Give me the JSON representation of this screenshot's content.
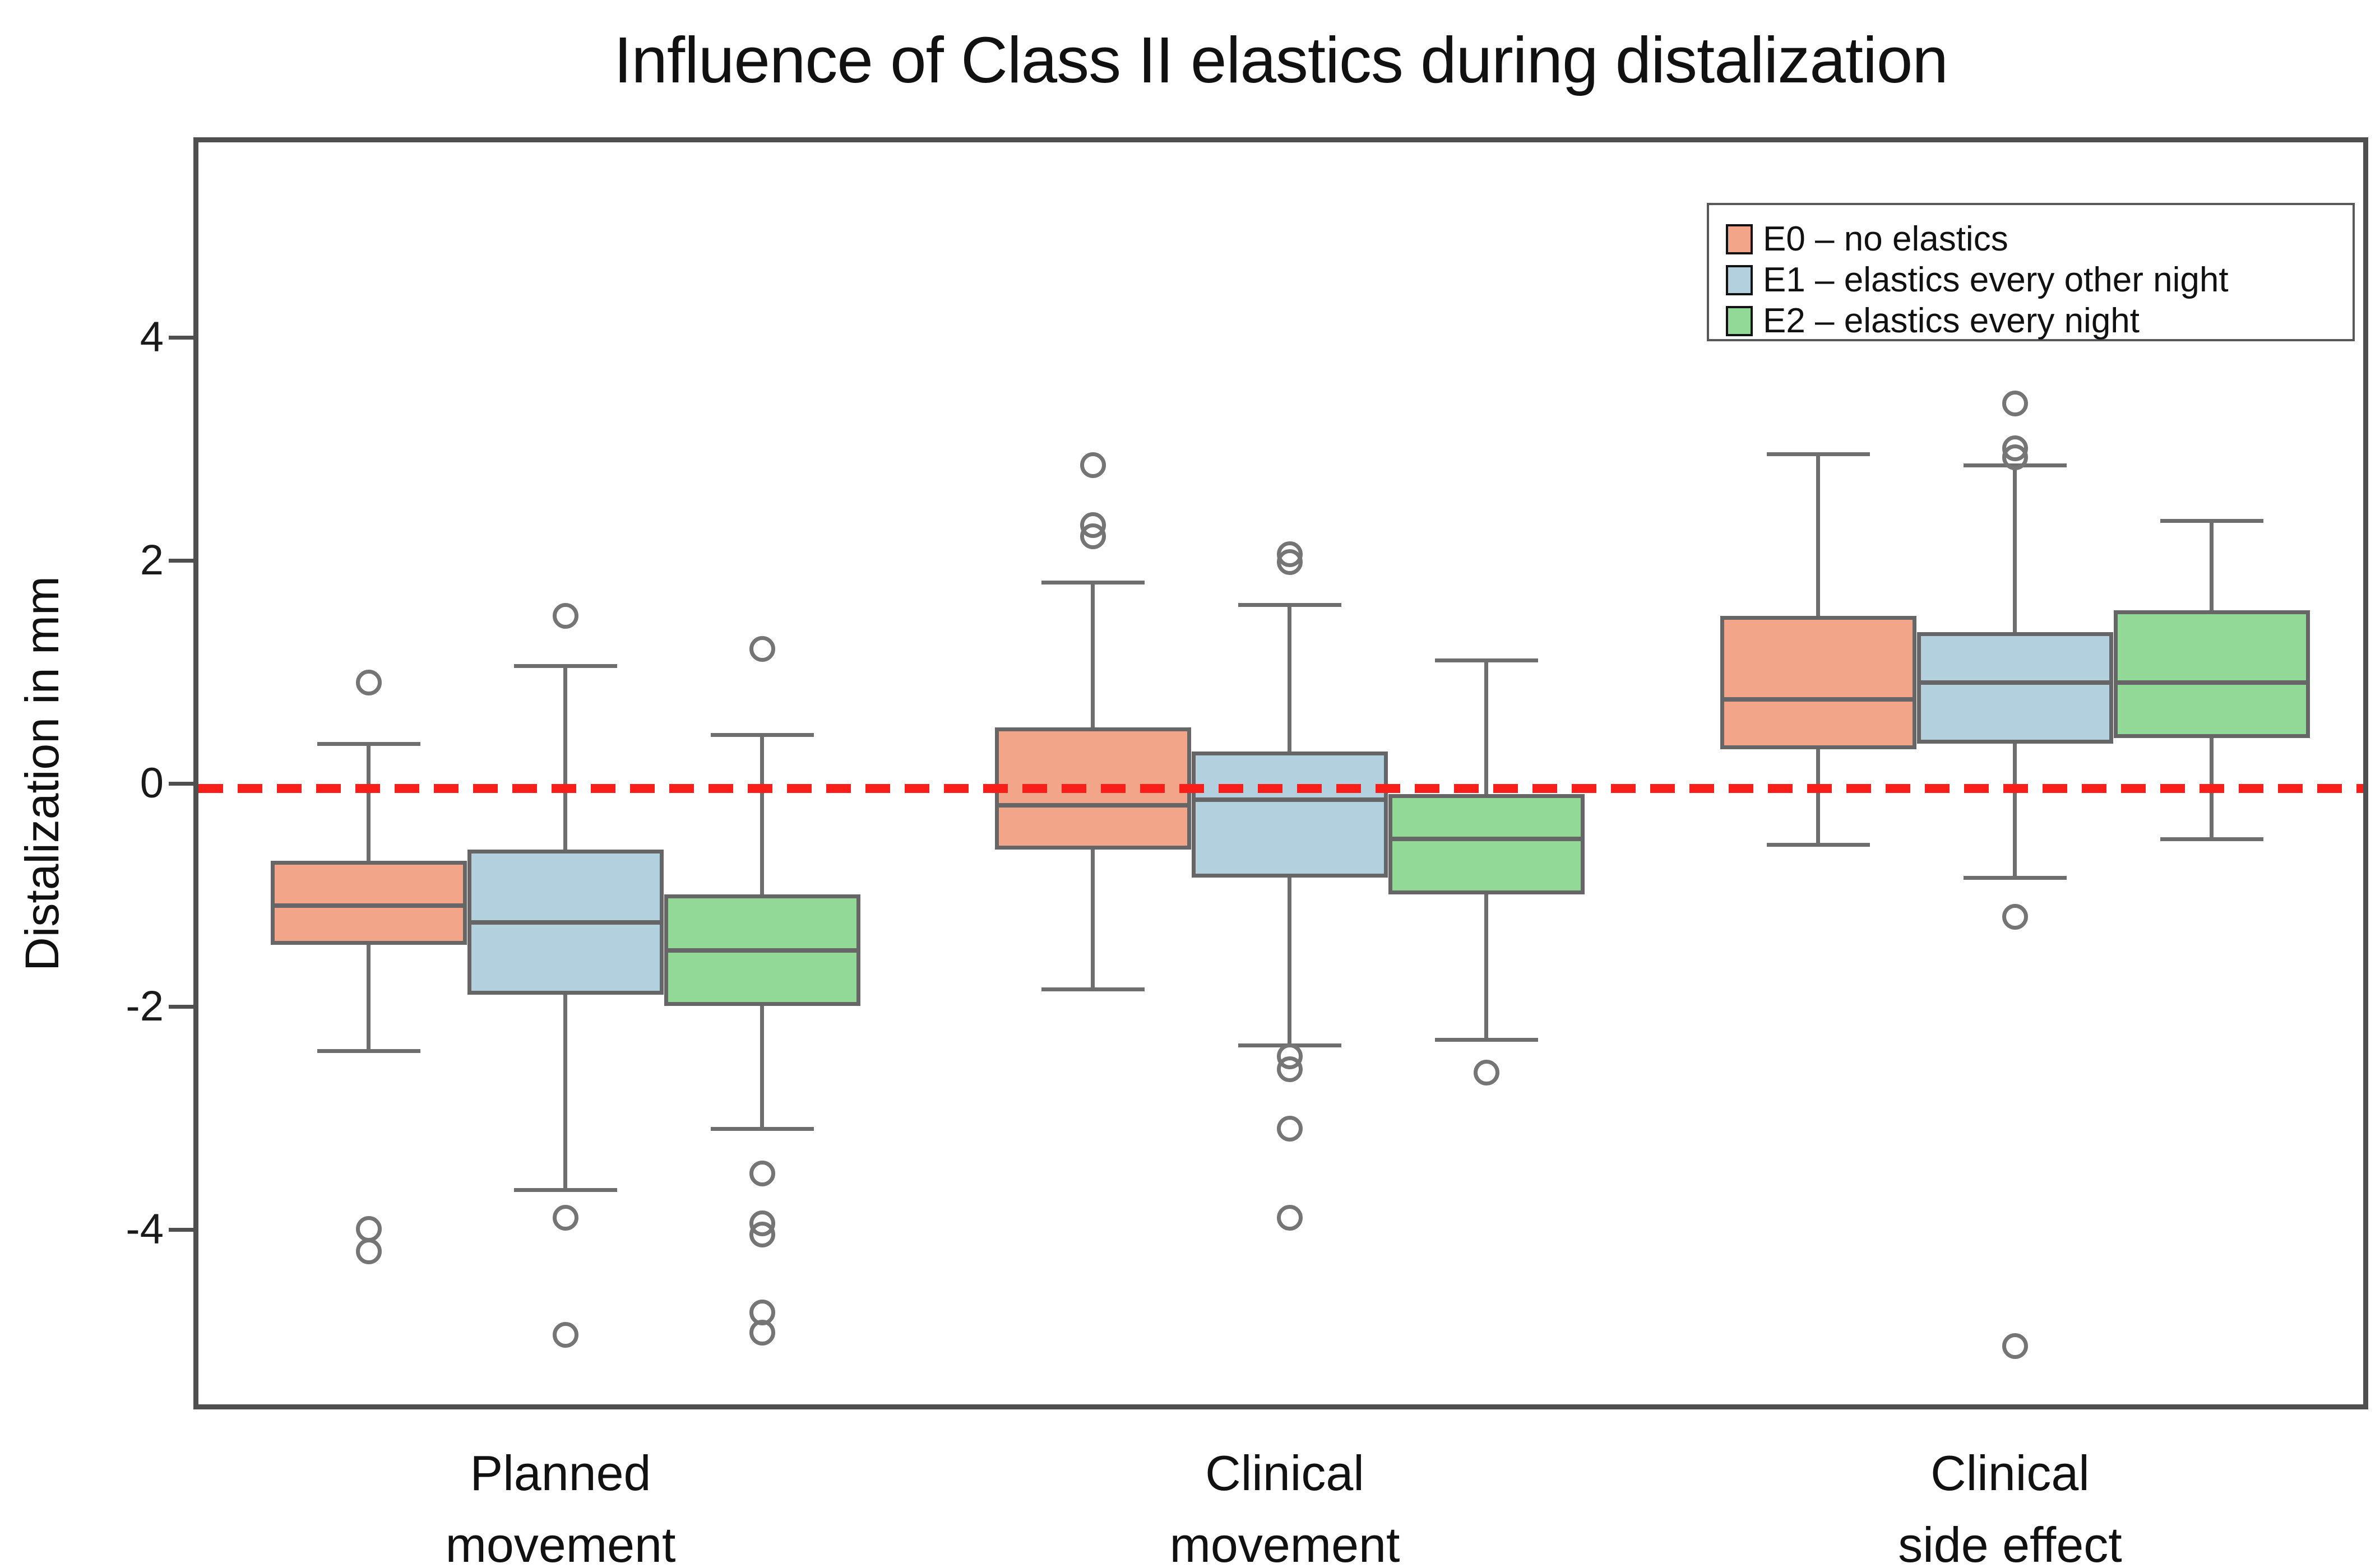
{
  "title": "Influence of Class II elastics during distalization",
  "chart_data": {
    "type": "box",
    "title": "Influence of Class II elastics during distalization",
    "xlabel": "",
    "ylabel": "Distalization in mm",
    "ylim": [
      -5.6,
      5.8
    ],
    "yticks": [
      4,
      2,
      0,
      -2,
      -4
    ],
    "grid": false,
    "legend_position": "upper right",
    "reference_line": {
      "y": 0,
      "style": "dashed",
      "color": "#f81e1a"
    },
    "categories": [
      [
        "Planned",
        "movement"
      ],
      [
        "Clinical",
        "movement"
      ],
      [
        "Clinical",
        "side effect"
      ]
    ],
    "series": [
      {
        "id": "E0",
        "name": "E0 – no elastics",
        "color": "#f3a589",
        "boxes": [
          {
            "whisker_low": -2.35,
            "q1": -1.4,
            "median": -1.05,
            "q3": -0.65,
            "whisker_high": 0.4,
            "outliers": [
              0.95,
              -3.95,
              -4.15
            ]
          },
          {
            "whisker_low": -1.8,
            "q1": -0.55,
            "median": -0.15,
            "q3": 0.55,
            "whisker_high": 1.85,
            "outliers": [
              2.9,
              2.36,
              2.26
            ]
          },
          {
            "whisker_low": -0.5,
            "q1": 0.35,
            "median": 0.8,
            "q3": 1.55,
            "whisker_high": 3.0,
            "outliers": []
          }
        ]
      },
      {
        "id": "E1",
        "name": "E1 – elastics every other night",
        "color": "#b3d0de",
        "boxes": [
          {
            "whisker_low": -3.6,
            "q1": -1.85,
            "median": -1.2,
            "q3": -0.55,
            "whisker_high": 1.1,
            "outliers": [
              1.55,
              -3.85,
              -4.9
            ]
          },
          {
            "whisker_low": -2.3,
            "q1": -0.8,
            "median": -0.1,
            "q3": 0.33,
            "whisker_high": 1.65,
            "outliers": [
              2.1,
              2.03,
              -2.4,
              -2.52,
              -3.05,
              -3.85
            ]
          },
          {
            "whisker_low": -0.8,
            "q1": 0.4,
            "median": 0.95,
            "q3": 1.4,
            "whisker_high": 2.9,
            "outliers": [
              3.45,
              3.05,
              2.97,
              -1.15,
              -5.0
            ]
          }
        ]
      },
      {
        "id": "E2",
        "name": "E2 – elastics every night",
        "color": "#92d998",
        "boxes": [
          {
            "whisker_low": -3.05,
            "q1": -1.95,
            "median": -1.45,
            "q3": -0.95,
            "whisker_high": 0.48,
            "outliers": [
              1.25,
              -3.45,
              -3.9,
              -4.0,
              -4.7,
              -4.88
            ]
          },
          {
            "whisker_low": -2.25,
            "q1": -0.95,
            "median": -0.45,
            "q3": -0.05,
            "whisker_high": 1.15,
            "outliers": [
              -2.55
            ]
          },
          {
            "whisker_low": -0.45,
            "q1": 0.45,
            "median": 0.95,
            "q3": 1.6,
            "whisker_high": 2.4,
            "outliers": []
          }
        ]
      }
    ]
  }
}
